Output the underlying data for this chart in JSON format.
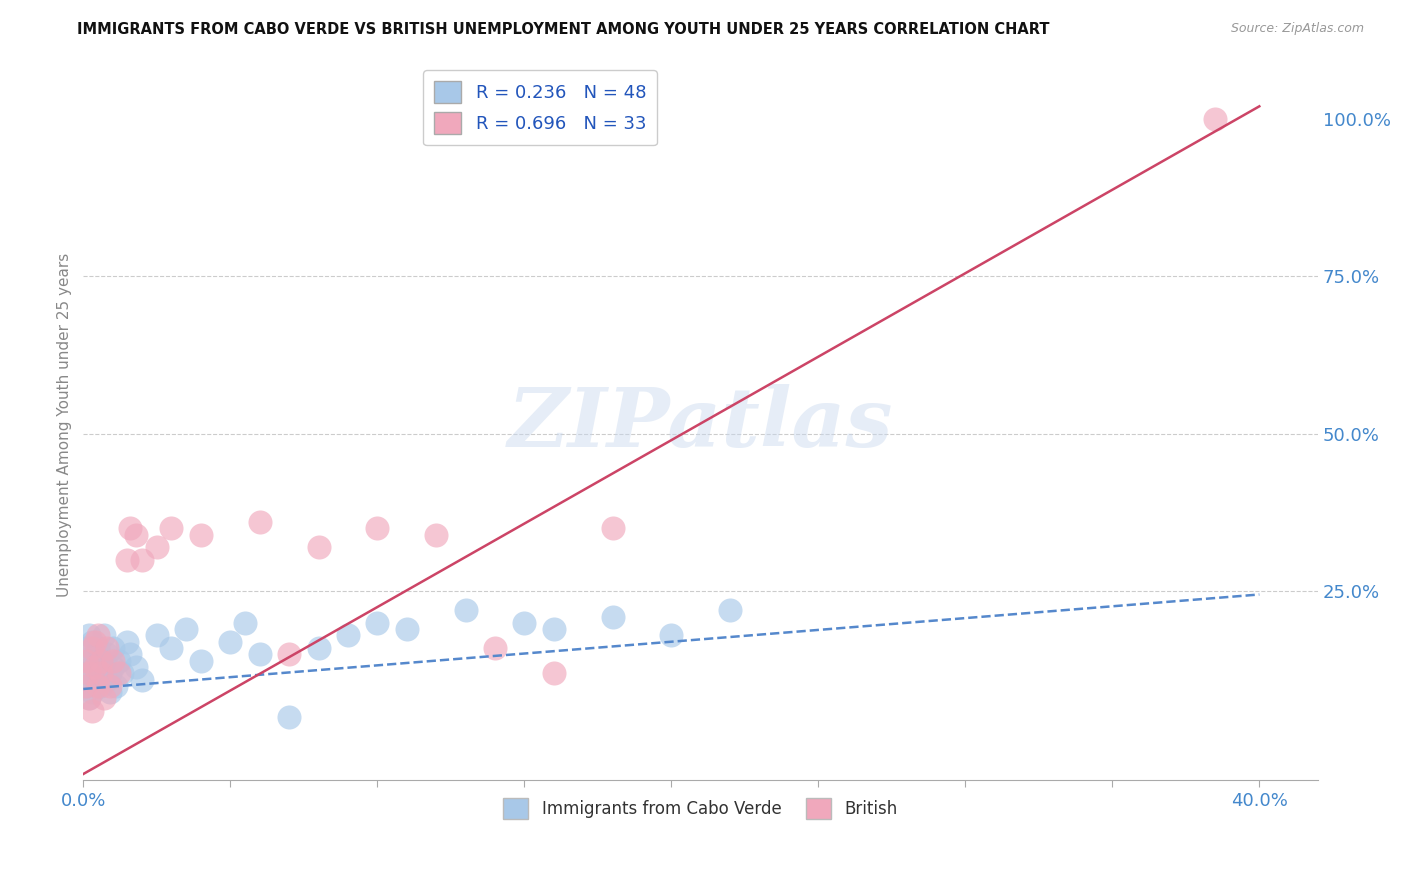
{
  "title": "IMMIGRANTS FROM CABO VERDE VS BRITISH UNEMPLOYMENT AMONG YOUTH UNDER 25 YEARS CORRELATION CHART",
  "source": "Source: ZipAtlas.com",
  "ylabel": "Unemployment Among Youth under 25 years",
  "xlim": [
    0.0,
    0.42
  ],
  "ylim": [
    -0.05,
    1.08
  ],
  "yticks_right": [
    0.25,
    0.5,
    0.75,
    1.0
  ],
  "ytick_right_labels": [
    "25.0%",
    "50.0%",
    "75.0%",
    "100.0%"
  ],
  "blue_R": 0.236,
  "blue_N": 48,
  "pink_R": 0.696,
  "pink_N": 33,
  "blue_color": "#A8C8E8",
  "pink_color": "#F0A8BC",
  "blue_line_color": "#5588CC",
  "pink_line_color": "#CC4466",
  "legend_label_blue": "Immigrants from Cabo Verde",
  "legend_label_pink": "British",
  "watermark": "ZIPatlas",
  "background_color": "#ffffff",
  "grid_color": "#cccccc",
  "blue_trend_x": [
    0.0,
    0.4
  ],
  "blue_trend_y": [
    0.095,
    0.245
  ],
  "pink_trend_x": [
    0.0,
    0.4
  ],
  "pink_trend_y": [
    -0.04,
    1.02
  ],
  "blue_scatter_x": [
    0.001,
    0.001,
    0.001,
    0.002,
    0.002,
    0.002,
    0.003,
    0.003,
    0.003,
    0.004,
    0.004,
    0.005,
    0.005,
    0.006,
    0.006,
    0.007,
    0.007,
    0.008,
    0.008,
    0.009,
    0.009,
    0.01,
    0.01,
    0.011,
    0.012,
    0.013,
    0.015,
    0.016,
    0.018,
    0.02,
    0.025,
    0.03,
    0.035,
    0.04,
    0.05,
    0.055,
    0.06,
    0.07,
    0.08,
    0.09,
    0.1,
    0.11,
    0.13,
    0.15,
    0.16,
    0.18,
    0.2,
    0.22
  ],
  "blue_scatter_y": [
    0.12,
    0.16,
    0.1,
    0.14,
    0.08,
    0.18,
    0.13,
    0.17,
    0.09,
    0.15,
    0.11,
    0.16,
    0.12,
    0.13,
    0.1,
    0.14,
    0.18,
    0.11,
    0.15,
    0.12,
    0.09,
    0.16,
    0.13,
    0.1,
    0.14,
    0.12,
    0.17,
    0.15,
    0.13,
    0.11,
    0.18,
    0.16,
    0.19,
    0.14,
    0.17,
    0.2,
    0.15,
    0.05,
    0.16,
    0.18,
    0.2,
    0.19,
    0.22,
    0.2,
    0.19,
    0.21,
    0.18,
    0.22
  ],
  "pink_scatter_x": [
    0.001,
    0.001,
    0.002,
    0.002,
    0.003,
    0.003,
    0.004,
    0.004,
    0.005,
    0.005,
    0.006,
    0.006,
    0.007,
    0.008,
    0.009,
    0.01,
    0.012,
    0.015,
    0.016,
    0.018,
    0.02,
    0.025,
    0.03,
    0.04,
    0.06,
    0.07,
    0.08,
    0.1,
    0.12,
    0.14,
    0.16,
    0.18,
    0.385
  ],
  "pink_scatter_y": [
    0.1,
    0.14,
    0.08,
    0.12,
    0.16,
    0.06,
    0.13,
    0.17,
    0.1,
    0.18,
    0.14,
    0.12,
    0.08,
    0.16,
    0.1,
    0.14,
    0.12,
    0.3,
    0.35,
    0.34,
    0.3,
    0.32,
    0.35,
    0.34,
    0.36,
    0.15,
    0.32,
    0.35,
    0.34,
    0.16,
    0.12,
    0.35,
    1.0
  ]
}
